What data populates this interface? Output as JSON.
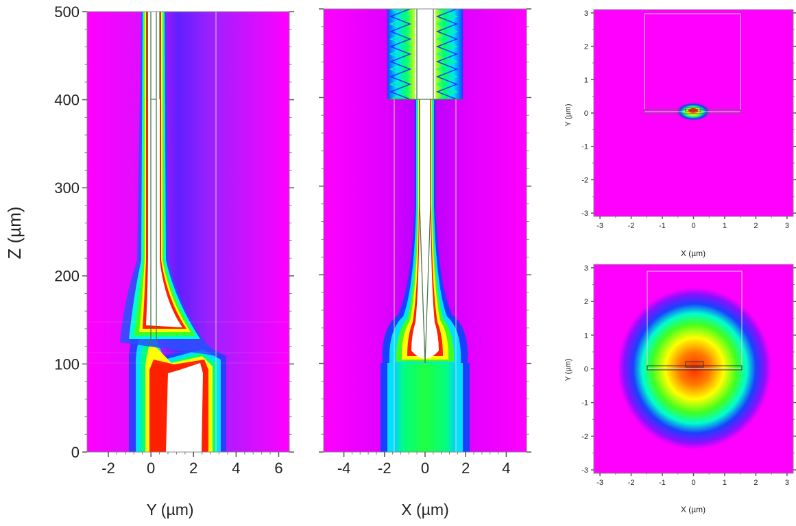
{
  "chart_data": [
    {
      "type": "heatmap",
      "panel": "left-yz",
      "xlabel": "Y (µm)",
      "ylabel": "Z (µm)",
      "xlim": [
        -3,
        6.5
      ],
      "ylim": [
        0,
        500
      ],
      "xticks": [
        -2,
        0,
        2,
        4,
        6
      ],
      "yticks": [
        0,
        100,
        200,
        300,
        400,
        500
      ]
    },
    {
      "type": "heatmap",
      "panel": "middle-xz",
      "xlabel": "X (µm)",
      "ylabel": "",
      "xlim": [
        -5,
        5
      ],
      "ylim": [
        0,
        500
      ],
      "xticks": [
        -4,
        -2,
        0,
        2,
        4
      ],
      "yticks": [
        0,
        100,
        200,
        300,
        400,
        500
      ]
    },
    {
      "type": "heatmap",
      "panel": "top-right-xy",
      "xlabel": "X (µm)",
      "ylabel": "Y (µm)",
      "xlim": [
        -3.2,
        3.2
      ],
      "ylim": [
        -3.1,
        3.1
      ],
      "xticks": [
        -3,
        -2,
        -1,
        0,
        1,
        2,
        3
      ],
      "yticks": [
        -3,
        -2,
        -1,
        0,
        1,
        2,
        3
      ]
    },
    {
      "type": "heatmap",
      "panel": "bottom-right-xy",
      "xlabel": "X (µm)",
      "ylabel": "Y (µm)",
      "xlim": [
        -3.2,
        3.2
      ],
      "ylim": [
        -3.1,
        3.1
      ],
      "xticks": [
        -3,
        -2,
        -1,
        0,
        1,
        2,
        3
      ],
      "yticks": [
        -3,
        -2,
        -1,
        0,
        1,
        2,
        3
      ]
    }
  ],
  "colors": {
    "background": "#ff00ff",
    "low": "#ff00ff",
    "mid_low": "#2030ff",
    "mid": "#00ff80",
    "mid_high": "#ffff00",
    "high": "#ff2000",
    "peak": "#ffffff",
    "outline": "#4a7a4a",
    "guide": "#d8d8d8"
  }
}
